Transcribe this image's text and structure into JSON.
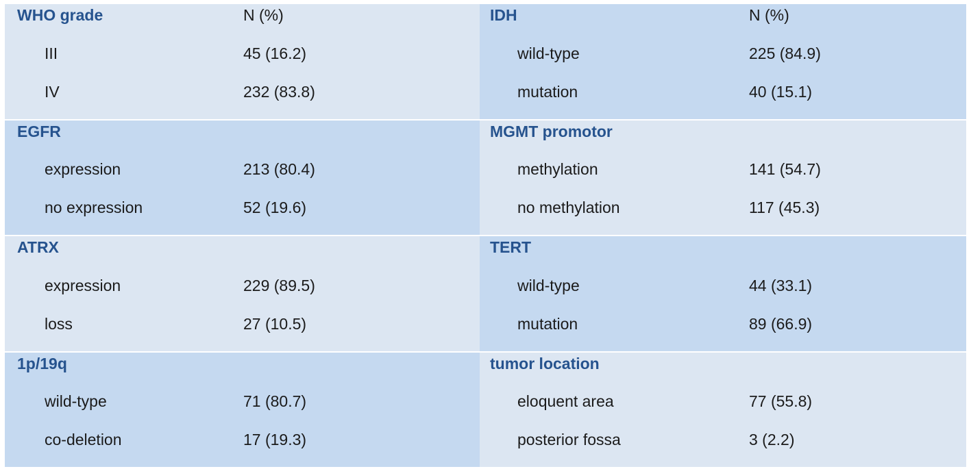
{
  "table": {
    "description": "Tumor molecular and clinical characteristics table",
    "value_column_header": "N (%)",
    "colors": {
      "block_light": "#dce6f2",
      "block_dark": "#c5d9f0",
      "section_title_text": "#26538e",
      "body_text": "#1b1b1b",
      "background": "#ffffff"
    },
    "sections": {
      "left": [
        {
          "title": "WHO grade",
          "header_value": "N (%)",
          "shade": "light",
          "rows": [
            {
              "label": "III",
              "value": "45 (16.2)"
            },
            {
              "label": "IV",
              "value": "232 (83.8)"
            }
          ]
        },
        {
          "title": "EGFR",
          "header_value": "",
          "shade": "dark",
          "rows": [
            {
              "label": "expression",
              "value": "213 (80.4)"
            },
            {
              "label": "no expression",
              "value": "52 (19.6)"
            }
          ]
        },
        {
          "title": "ATRX",
          "header_value": "",
          "shade": "light",
          "rows": [
            {
              "label": "expression",
              "value": "229 (89.5)"
            },
            {
              "label": "loss",
              "value": "27 (10.5)"
            }
          ]
        },
        {
          "title": "1p/19q",
          "header_value": "",
          "shade": "dark",
          "rows": [
            {
              "label": "wild-type",
              "value": "71 (80.7)"
            },
            {
              "label": "co-deletion",
              "value": "17 (19.3)"
            }
          ]
        }
      ],
      "right": [
        {
          "title": "IDH",
          "header_value": "N (%)",
          "shade": "dark",
          "rows": [
            {
              "label": "wild-type",
              "value": "225 (84.9)"
            },
            {
              "label": "mutation",
              "value": "40 (15.1)"
            }
          ]
        },
        {
          "title": "MGMT promotor",
          "header_value": "",
          "shade": "light",
          "rows": [
            {
              "label": "methylation",
              "value": "141 (54.7)"
            },
            {
              "label": "no methylation",
              "value": "117 (45.3)"
            }
          ]
        },
        {
          "title": "TERT",
          "header_value": "",
          "shade": "dark",
          "rows": [
            {
              "label": "wild-type",
              "value": "44 (33.1)"
            },
            {
              "label": "mutation",
              "value": "89 (66.9)"
            }
          ]
        },
        {
          "title": "tumor location",
          "header_value": "",
          "shade": "light",
          "rows": [
            {
              "label": "eloquent area",
              "value": "77 (55.8)"
            },
            {
              "label": "posterior fossa",
              "value": "3 (2.2)"
            }
          ]
        }
      ]
    }
  }
}
